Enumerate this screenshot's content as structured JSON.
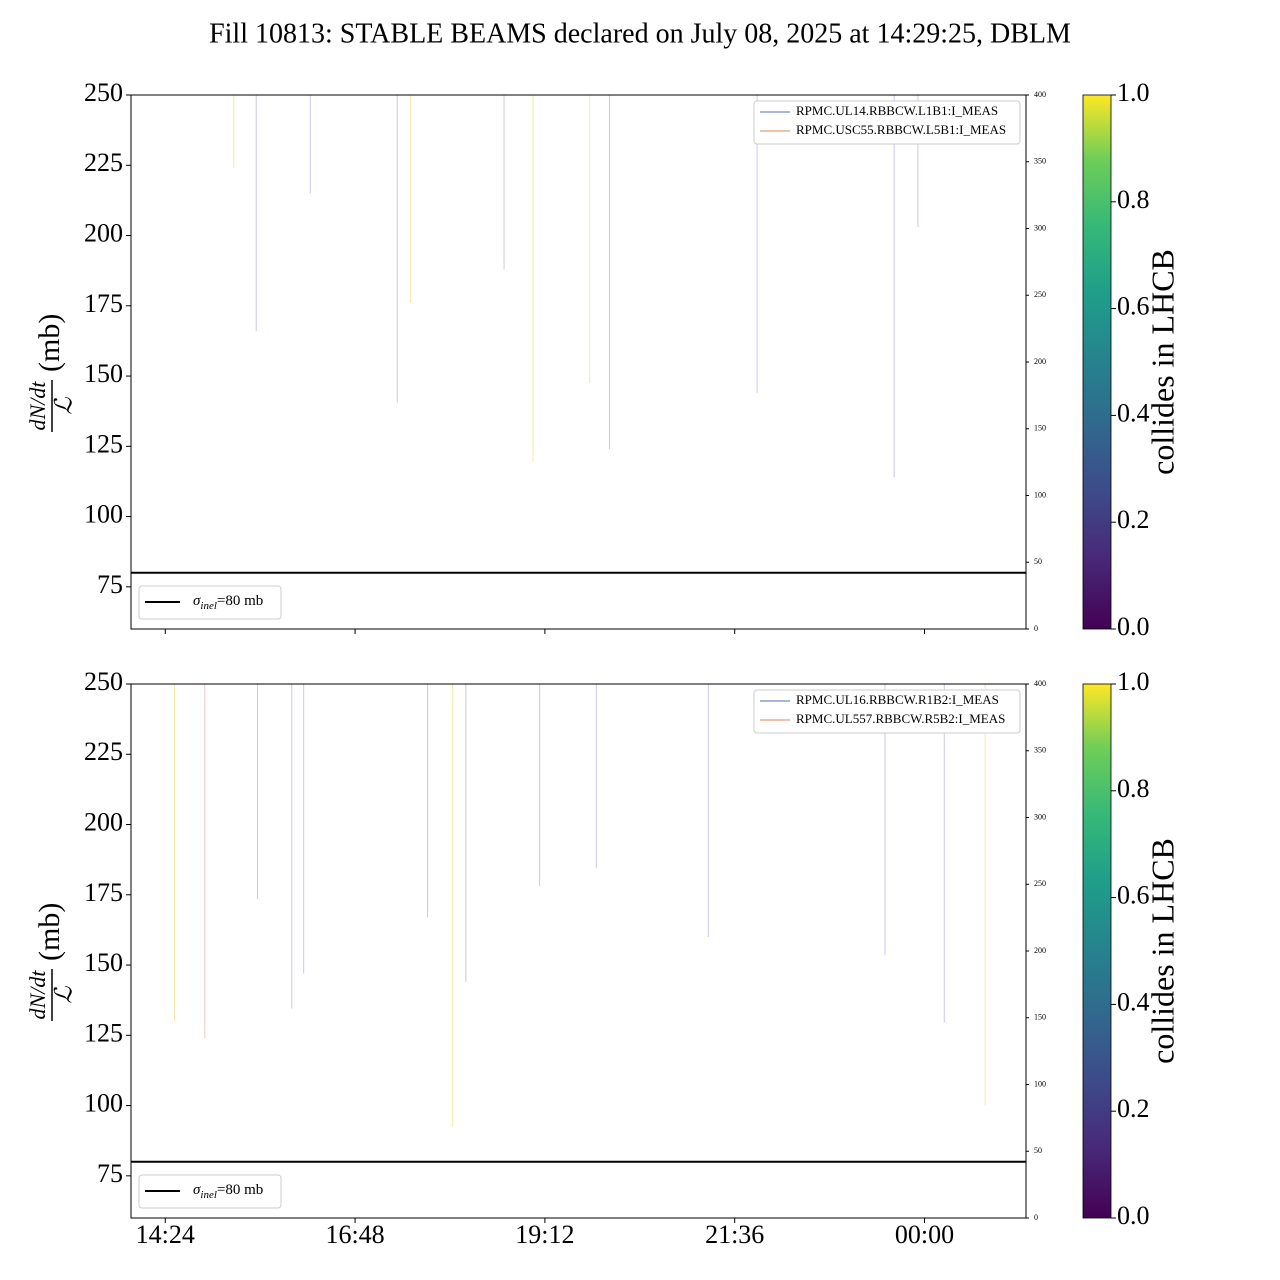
{
  "title": "Fill 10813: STABLE BEAMS declared on July 08, 2025 at 14:29:25, DBLM",
  "chart_data": [
    {
      "type": "line",
      "ylabel": {
        "numerator": "dN/dt",
        "denominator": "ℒ",
        "unit": "(mb)"
      },
      "xlim": [
        "13:58",
        "01:17"
      ],
      "xticks": [
        "14:24",
        "16:48",
        "19:12",
        "21:36",
        "00:00"
      ],
      "show_xticklabels": false,
      "ylim": [
        60,
        250
      ],
      "yticks": [
        75,
        100,
        125,
        150,
        175,
        200,
        225,
        250
      ],
      "y2lim": [
        0,
        400
      ],
      "y2ticks": [
        0,
        50,
        100,
        150,
        200,
        250,
        300,
        350,
        400
      ],
      "legend_loc": "upper right",
      "series": [
        {
          "name": "RPMC.UL14.RBBCW.L1B1:I_MEAS",
          "color": "#4c72b0",
          "axis": "y2",
          "x": [
            "14:28",
            "00:46"
          ],
          "values": [
            0,
            0
          ]
        },
        {
          "name": "RPMC.USC55.RBBCW.L5B1:I_MEAS",
          "color": "#dd8452",
          "axis": "y2",
          "x": [
            "14:28",
            "00:46"
          ],
          "values": [
            0,
            0
          ]
        }
      ],
      "spikes": {
        "x": [
          "15:16",
          "15:33",
          "16:14",
          "17:20",
          "17:30",
          "18:41",
          "19:03",
          "19:46",
          "20:01",
          "21:53",
          "23:37",
          "23:55"
        ],
        "values": [
          224,
          166,
          215,
          140.5,
          176,
          188,
          119.5,
          147.5,
          124,
          144,
          114,
          203
        ],
        "colors": [
          "#f3e9a8",
          "#c9c9ee",
          "#c9c9ee",
          "#c9c9ee",
          "#f3e9a8",
          "#c9c9ee",
          "#f3e9a8",
          "#f3e9a8",
          "#c9c9ee",
          "#c9c9ee",
          "#c9c9ee",
          "#c9c9ee"
        ]
      },
      "reference": {
        "value": 80,
        "color": "#000000",
        "label": {
          "symbol": "σ",
          "subscript": "inel",
          "text": "=80 mb"
        }
      },
      "colorbar": {
        "label": "collides in LHCB",
        "lim": [
          0,
          1
        ],
        "ticks": [
          {
            "value": 0,
            "label": "0.0"
          },
          {
            "value": 0.2,
            "label": "0.2"
          },
          {
            "value": 0.4,
            "label": "0.4"
          },
          {
            "value": 0.6,
            "label": "0.6"
          },
          {
            "value": 0.8,
            "label": "0.8"
          },
          {
            "value": 1,
            "label": "1.0"
          }
        ]
      }
    },
    {
      "type": "line",
      "ylabel": {
        "numerator": "dN/dt",
        "denominator": "ℒ",
        "unit": "(mb)"
      },
      "xlim": [
        "13:58",
        "01:17"
      ],
      "xticks": [
        "14:24",
        "16:48",
        "19:12",
        "21:36",
        "00:00"
      ],
      "show_xticklabels": true,
      "ylim": [
        60,
        250
      ],
      "yticks": [
        75,
        100,
        125,
        150,
        175,
        200,
        225,
        250
      ],
      "y2lim": [
        0,
        400
      ],
      "y2ticks": [
        0,
        50,
        100,
        150,
        200,
        250,
        300,
        350,
        400
      ],
      "legend_loc": "upper right",
      "series": [
        {
          "name": "RPMC.UL16.RBBCW.R1B2:I_MEAS",
          "color": "#4c72b0",
          "axis": "y2",
          "x": [
            "14:28",
            "00:46"
          ],
          "values": [
            0,
            0
          ]
        },
        {
          "name": "RPMC.UL557.RBBCW.R5B2:I_MEAS",
          "color": "#dd8452",
          "axis": "y2",
          "x": [
            "14:28",
            "00:46"
          ],
          "values": [
            0,
            0
          ]
        }
      ],
      "spikes": {
        "x": [
          "14:31",
          "14:54",
          "15:34",
          "16:00",
          "16:09",
          "17:43",
          "18:02",
          "18:12",
          "19:08",
          "19:51",
          "21:16",
          "23:30",
          "00:15",
          "00:46"
        ],
        "values": [
          130,
          124,
          173.5,
          134.5,
          147,
          167,
          92.5,
          144,
          178,
          184.5,
          160,
          153.5,
          129.5,
          100
        ],
        "colors": [
          "#f3e9a8",
          "#f0c9c0",
          "#c9c9ee",
          "#c9c9ee",
          "#c9c9ee",
          "#c9c9ee",
          "#f3e9a8",
          "#c9c9ee",
          "#c9c9ee",
          "#c9c9ee",
          "#c9c9ee",
          "#c9c9ee",
          "#c9c9ee",
          "#f3e9a8"
        ]
      },
      "reference": {
        "value": 80,
        "color": "#000000",
        "label": {
          "symbol": "σ",
          "subscript": "inel",
          "text": "=80 mb"
        }
      },
      "colorbar": {
        "label": "collides in LHCB",
        "lim": [
          0,
          1
        ],
        "ticks": [
          {
            "value": 0,
            "label": "0.0"
          },
          {
            "value": 0.2,
            "label": "0.2"
          },
          {
            "value": 0.4,
            "label": "0.4"
          },
          {
            "value": 0.6,
            "label": "0.6"
          },
          {
            "value": 0.8,
            "label": "0.8"
          },
          {
            "value": 1,
            "label": "1.0"
          }
        ]
      }
    }
  ]
}
